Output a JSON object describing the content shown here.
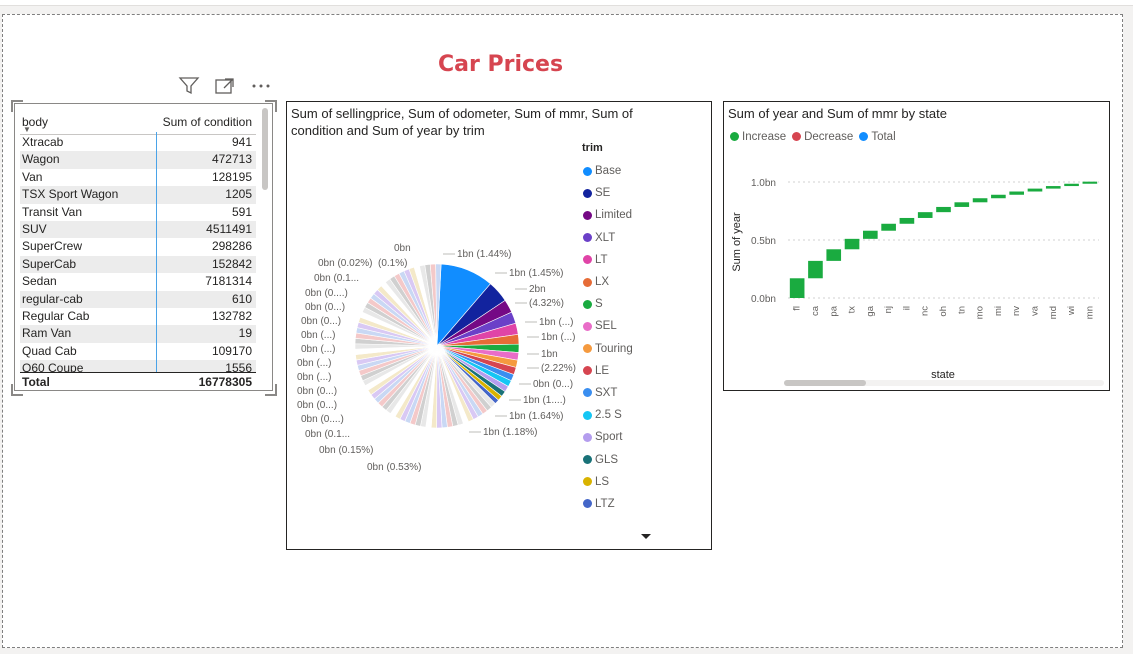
{
  "report": {
    "title": "Car Prices"
  },
  "colors": {
    "title": "#d64550",
    "increase": "#1aab40",
    "decrease": "#d64550",
    "total": "#118dff"
  },
  "table": {
    "headers": [
      "body",
      "Sum of condition"
    ],
    "rows": [
      [
        "Xtracab",
        "941"
      ],
      [
        "Wagon",
        "472713"
      ],
      [
        "Van",
        "128195"
      ],
      [
        "TSX Sport Wagon",
        "1205"
      ],
      [
        "Transit Van",
        "591"
      ],
      [
        "SUV",
        "4511491"
      ],
      [
        "SuperCrew",
        "298286"
      ],
      [
        "SuperCab",
        "152842"
      ],
      [
        "Sedan",
        "7181314"
      ],
      [
        "regular-cab",
        "610"
      ],
      [
        "Regular Cab",
        "132782"
      ],
      [
        "Ram Van",
        "19"
      ],
      [
        "Quad Cab",
        "109170"
      ],
      [
        "Q60 Coupe",
        "1556"
      ]
    ],
    "total_label": "Total",
    "total_value": "16778305"
  },
  "pie": {
    "title_line1": "Sum of sellingprice, Sum of odometer, Sum of mmr, Sum of",
    "title_line2": "condition and Sum of year by trim",
    "legend_title": "trim",
    "legend": [
      {
        "name": "Base",
        "color": "#118dff"
      },
      {
        "name": "SE",
        "color": "#12239e"
      },
      {
        "name": "Limited",
        "color": "#750985"
      },
      {
        "name": "XLT",
        "color": "#6b40c8"
      },
      {
        "name": "LT",
        "color": "#e044a7"
      },
      {
        "name": "LX",
        "color": "#e66c37"
      },
      {
        "name": "S",
        "color": "#1aab40"
      },
      {
        "name": "SEL",
        "color": "#e96dc8"
      },
      {
        "name": "Touring",
        "color": "#f59a3f"
      },
      {
        "name": "LE",
        "color": "#d64550"
      },
      {
        "name": "SXT",
        "color": "#3a8ef0"
      },
      {
        "name": "2.5 S",
        "color": "#15c6f4"
      },
      {
        "name": "Sport",
        "color": "#b49dee"
      },
      {
        "name": "GLS",
        "color": "#197278"
      },
      {
        "name": "LS",
        "color": "#d9b300"
      },
      {
        "name": "LTZ",
        "color": "#4466c8"
      }
    ],
    "labels_right": [
      "1bn (1.44%)",
      "1bn (1.45%)",
      "2bn",
      "(4.32%)",
      "1bn (...)",
      "1bn (...)",
      "1bn",
      "(2.22%)",
      "0bn (0...)",
      "1bn (1....)",
      "1bn (1.64%)",
      "1bn (1.18%)"
    ],
    "labels_left": [
      "0bn",
      "0bn (0.02%)",
      "(0.1%)",
      "0bn (0.1...",
      "0bn (0....)",
      "0bn (0...)",
      "0bn (0...)",
      "0bn (...)",
      "0bn (...)",
      "0bn (...)",
      "0bn (...)",
      "0bn (0...)",
      "0bn (0...)",
      "0bn (0....)",
      "0bn (0.1...",
      "0bn (0.15%)",
      "0bn (0.53%)"
    ]
  },
  "chart_data": [
    {
      "type": "pie",
      "title": "Sum of sellingprice, Sum of odometer, Sum of mmr, Sum of condition and Sum of year by trim",
      "legend_title": "trim",
      "categories": [
        "Base",
        "SE",
        "Limited",
        "XLT",
        "LT",
        "LX",
        "S",
        "SEL",
        "Touring",
        "LE",
        "SXT",
        "2.5 S",
        "Sport",
        "GLS",
        "LS",
        "LTZ"
      ],
      "values": [
        10.5,
        4.32,
        2.6,
        2.3,
        2.22,
        1.9,
        1.64,
        1.5,
        1.45,
        1.44,
        1.3,
        1.25,
        1.18,
        1.1,
        1.0,
        0.9
      ],
      "unit": "percent"
    },
    {
      "type": "bar",
      "subtype": "waterfall",
      "title": "Sum of year and Sum of mmr by state",
      "xlabel": "state",
      "ylabel": "Sum of year",
      "legend": [
        "Increase",
        "Decrease",
        "Total"
      ],
      "categories": [
        "fl",
        "ca",
        "pa",
        "tx",
        "ga",
        "nj",
        "il",
        "nc",
        "oh",
        "tn",
        "mo",
        "mi",
        "nv",
        "va",
        "md",
        "wi",
        "mn"
      ],
      "values": [
        0.17,
        0.15,
        0.1,
        0.09,
        0.07,
        0.06,
        0.05,
        0.05,
        0.045,
        0.04,
        0.035,
        0.03,
        0.028,
        0.025,
        0.022,
        0.02,
        0.018
      ],
      "ylim": [
        0,
        1.0
      ],
      "yticks": [
        "0.0bn",
        "0.5bn",
        "1.0bn"
      ]
    }
  ]
}
